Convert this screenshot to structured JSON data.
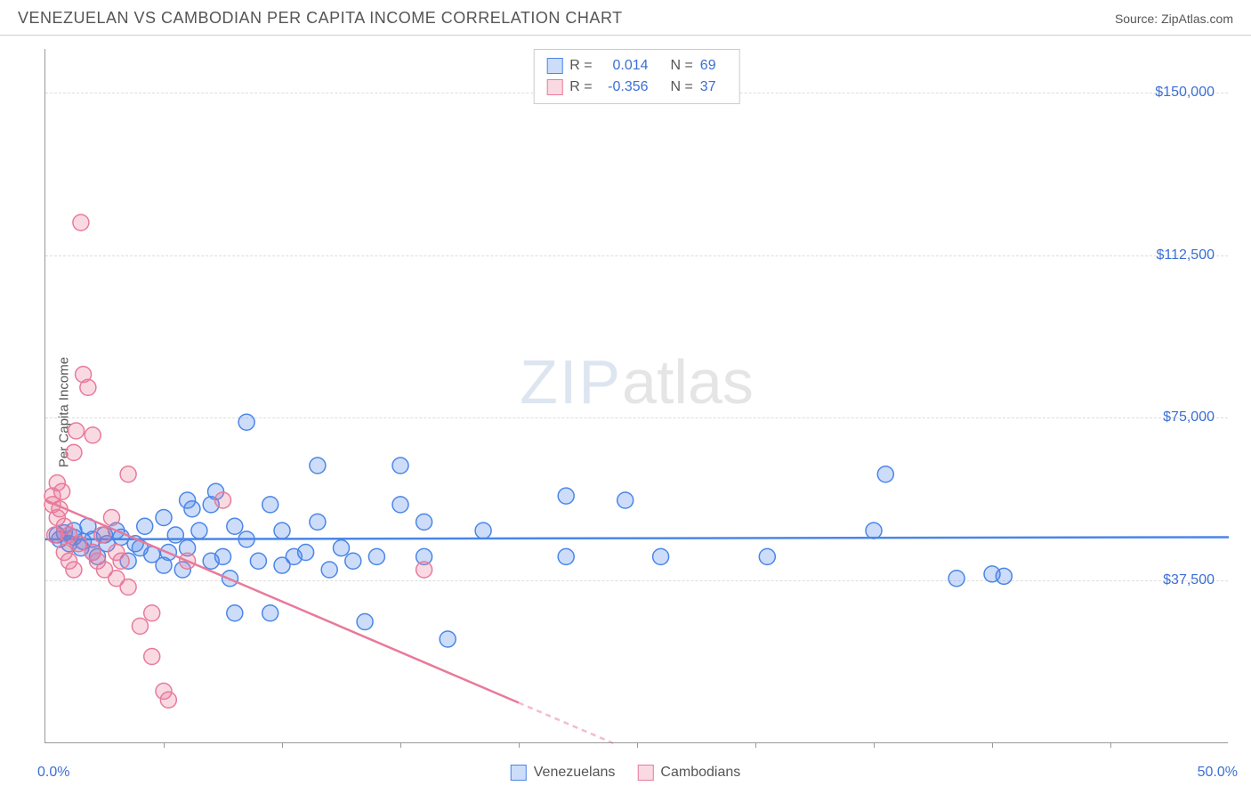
{
  "header": {
    "title": "VENEZUELAN VS CAMBODIAN PER CAPITA INCOME CORRELATION CHART",
    "source": "Source: ZipAtlas.com"
  },
  "watermark": {
    "part1": "ZIP",
    "part2": "atlas"
  },
  "chart": {
    "type": "scatter",
    "ylabel": "Per Capita Income",
    "xlim": [
      0,
      50
    ],
    "ylim": [
      0,
      160000
    ],
    "xtick_label_min": "0.0%",
    "xtick_label_max": "50.0%",
    "ytick_labels": [
      "$37,500",
      "$75,000",
      "$112,500",
      "$150,000"
    ],
    "ytick_values": [
      37500,
      75000,
      112500,
      150000
    ],
    "xtick_minor_count": 10,
    "grid_color": "#dddddd",
    "axis_color": "#999999",
    "background_color": "#ffffff",
    "label_color": "#555555",
    "tick_value_color": "#3b6fd4",
    "marker_radius": 9,
    "marker_stroke_width": 1.5,
    "marker_fill_opacity": 0.28,
    "trend_line_width": 2.5,
    "series": [
      {
        "name": "Venezuelans",
        "color_stroke": "#4a86e8",
        "color_fill": "#4a86e8",
        "r_value": "0.014",
        "n_value": "69",
        "trend": {
          "x1": 0,
          "y1": 47000,
          "x2": 50,
          "y2": 47500,
          "dash_after_x": null
        },
        "points": [
          [
            0.5,
            48000
          ],
          [
            0.6,
            47000
          ],
          [
            0.8,
            48500
          ],
          [
            1.0,
            46000
          ],
          [
            1.2,
            49000
          ],
          [
            1.2,
            47500
          ],
          [
            1.5,
            45000
          ],
          [
            1.6,
            46500
          ],
          [
            1.8,
            50000
          ],
          [
            2.0,
            44000
          ],
          [
            2.0,
            47000
          ],
          [
            2.2,
            43000
          ],
          [
            2.5,
            48000
          ],
          [
            2.6,
            46000
          ],
          [
            3.0,
            49000
          ],
          [
            3.2,
            47500
          ],
          [
            3.5,
            42000
          ],
          [
            3.8,
            46000
          ],
          [
            4.0,
            45000
          ],
          [
            4.2,
            50000
          ],
          [
            4.5,
            43500
          ],
          [
            5.0,
            52000
          ],
          [
            5.0,
            41000
          ],
          [
            5.2,
            44000
          ],
          [
            5.5,
            48000
          ],
          [
            5.8,
            40000
          ],
          [
            6.0,
            56000
          ],
          [
            6.0,
            45000
          ],
          [
            6.2,
            54000
          ],
          [
            6.5,
            49000
          ],
          [
            7.0,
            55000
          ],
          [
            7.0,
            42000
          ],
          [
            7.2,
            58000
          ],
          [
            7.5,
            43000
          ],
          [
            7.8,
            38000
          ],
          [
            8.0,
            30000
          ],
          [
            8.0,
            50000
          ],
          [
            8.5,
            47000
          ],
          [
            8.5,
            74000
          ],
          [
            9.0,
            42000
          ],
          [
            9.5,
            55000
          ],
          [
            9.5,
            30000
          ],
          [
            10.0,
            41000
          ],
          [
            10.0,
            49000
          ],
          [
            10.5,
            43000
          ],
          [
            11.0,
            44000
          ],
          [
            11.5,
            64000
          ],
          [
            11.5,
            51000
          ],
          [
            12.0,
            40000
          ],
          [
            12.5,
            45000
          ],
          [
            13.0,
            42000
          ],
          [
            13.5,
            28000
          ],
          [
            14.0,
            43000
          ],
          [
            15.0,
            55000
          ],
          [
            15.0,
            64000
          ],
          [
            16.0,
            51000
          ],
          [
            16.0,
            43000
          ],
          [
            17.0,
            24000
          ],
          [
            18.5,
            49000
          ],
          [
            22.0,
            57000
          ],
          [
            22.0,
            43000
          ],
          [
            24.5,
            56000
          ],
          [
            26.0,
            43000
          ],
          [
            30.5,
            43000
          ],
          [
            35.5,
            62000
          ],
          [
            35.0,
            49000
          ],
          [
            38.5,
            38000
          ],
          [
            40.0,
            39000
          ],
          [
            40.5,
            38500
          ]
        ]
      },
      {
        "name": "Cambodians",
        "color_stroke": "#e87a9a",
        "color_fill": "#e87a9a",
        "r_value": "-0.356",
        "n_value": "37",
        "trend": {
          "x1": 0,
          "y1": 56000,
          "x2": 24,
          "y2": 0,
          "dash_after_x": 20
        },
        "points": [
          [
            0.3,
            55000
          ],
          [
            0.3,
            57000
          ],
          [
            0.4,
            48000
          ],
          [
            0.5,
            60000
          ],
          [
            0.5,
            52000
          ],
          [
            0.6,
            54000
          ],
          [
            0.7,
            58000
          ],
          [
            0.8,
            50000
          ],
          [
            0.8,
            44000
          ],
          [
            1.0,
            42000
          ],
          [
            1.0,
            48000
          ],
          [
            1.2,
            40000
          ],
          [
            1.2,
            67000
          ],
          [
            1.3,
            72000
          ],
          [
            1.4,
            46000
          ],
          [
            1.5,
            120000
          ],
          [
            1.6,
            85000
          ],
          [
            1.8,
            82000
          ],
          [
            2.0,
            71000
          ],
          [
            2.0,
            44000
          ],
          [
            2.2,
            42000
          ],
          [
            2.4,
            48000
          ],
          [
            2.5,
            40000
          ],
          [
            2.8,
            52000
          ],
          [
            3.0,
            38000
          ],
          [
            3.0,
            44000
          ],
          [
            3.2,
            42000
          ],
          [
            3.5,
            62000
          ],
          [
            3.5,
            36000
          ],
          [
            4.0,
            27000
          ],
          [
            4.5,
            30000
          ],
          [
            4.5,
            20000
          ],
          [
            5.0,
            12000
          ],
          [
            5.2,
            10000
          ],
          [
            6.0,
            42000
          ],
          [
            7.5,
            56000
          ],
          [
            16.0,
            40000
          ]
        ]
      }
    ]
  },
  "stats_box": {
    "r_label": "R =",
    "n_label": "N ="
  },
  "bottom_legend": {
    "items": [
      "Venezuelans",
      "Cambodians"
    ]
  }
}
